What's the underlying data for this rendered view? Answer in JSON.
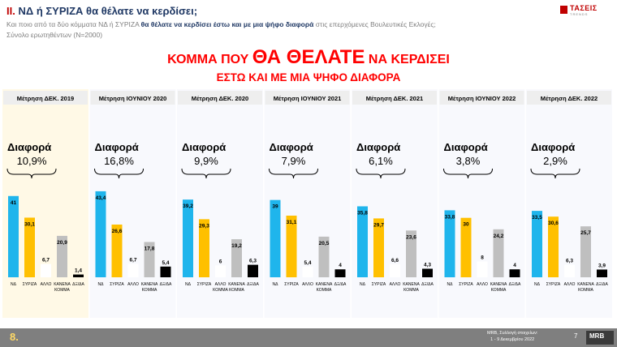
{
  "header": {
    "title_num": "II.",
    "title_rest": "ΝΔ  ή ΣΥΡΙΖΑ θα θέλατε να κερδίσει;",
    "subtitle_pre": "Και ποιο από τα δύο κόμματα ΝΔ ή ΣΥΡΙΖΑ ",
    "subtitle_bold": "θα θέλατε να κερδίσει έστω και με μια ψήφο διαφορά",
    "subtitle_post": " στις επερχόμενες Βουλευτικές Εκλογές;",
    "base": "Σύνολο ερωτηθέντων (Ν=2000)",
    "headline_pre": "ΚΟΜΜΑ ΠΟΥ ",
    "headline_big": "ΘΑ ΘΕΛΑΤΕ",
    "headline_post": " ΝΑ ΚΕΡΔΙΣΕΙ",
    "headline_line2": "ΕΣΤΩ ΚΑΙ ΜΕ ΜΙΑ ΨΗΦΟ ΔΙΑΦΟΡΑ"
  },
  "logo": {
    "name": "ΤΑΣΕΙΣ",
    "sub": "TRENDS"
  },
  "footer": {
    "page": "8.",
    "note_line1": "MRB, Συλλογή στοιχείων:",
    "note_line2": "1 - 9 Δεκεμβρίου 2022",
    "slide_num": "7",
    "brand": "MRB"
  },
  "colors": {
    "ND": "#1fb5ec",
    "SYRIZA": "#ffc000",
    "OTHER": "#ffffff",
    "NONE": "#bfbfbf",
    "DKDA": "#000000",
    "panel_tint": "#fff9e6",
    "panel_plain": "#f8f9fd"
  },
  "chart_data": {
    "type": "bar",
    "categories": [
      "ΝΔ",
      "ΣΥΡΙΖΑ",
      "ΑΛΛΟ",
      "ΚΑΝΕΝΑ ΚΟΜΜΑ",
      "ΔΞ/ΔΑ"
    ],
    "diff_label": "Διαφορά",
    "panels": [
      {
        "title": "Μέτρηση ΔΕΚ. 2019",
        "diff": "10,9%",
        "values": [
          41,
          30.1,
          6.7,
          20.9,
          1.4
        ],
        "labels": [
          "41",
          "30,1",
          "6,7",
          "20,9",
          "1,4"
        ],
        "cats": [
          "ΝΔ",
          "ΣΥΡΙΖΑ",
          "ΑΛΛΟ",
          "ΚΑΝΕΝΑ ΚΟΜΜΑ",
          "ΔΞ/ΔΑ"
        ]
      },
      {
        "title": "Μέτρηση ΙΟΥΝΙΟΥ 2020",
        "diff": "16,8%",
        "values": [
          43.4,
          26.6,
          6.7,
          17.8,
          5.4
        ],
        "labels": [
          "43,4",
          "26,6",
          "6,7",
          "17,8",
          "5,4"
        ],
        "cats": [
          "ΝΔ",
          "ΣΥΡΙΖΑ",
          "ΑΛΛΟ",
          "ΚΑΝΕΝΑ ΚΟΜΜΑ",
          "ΔΞ/ΔΑ"
        ]
      },
      {
        "title": "Μέτρηση ΔΕΚ. 2020",
        "diff": "9,9%",
        "values": [
          39.2,
          29.3,
          6,
          19.2,
          6.3
        ],
        "labels": [
          "39,2",
          "29,3",
          "6",
          "19,2",
          "6,3"
        ],
        "cats": [
          "ΝΔ",
          "ΣΥΡΙΖΑ",
          "ΑΛΛΟ ΚΟΜΜΑ",
          "ΚΑΝΕΝΑ ΚΟΜΜΑ",
          "ΔΞ/ΔΑ"
        ]
      },
      {
        "title": "Μέτρηση ΙΟΥΝΙΟΥ 2021",
        "diff": "7,9%",
        "values": [
          39,
          31.1,
          5.4,
          20.5,
          4
        ],
        "labels": [
          "39",
          "31,1",
          "5,4",
          "20,5",
          "4"
        ],
        "cats": [
          "ΝΔ",
          "ΣΥΡΙΖΑ",
          "ΑΛΛΟ",
          "ΚΑΝΕΝΑ ΚΟΜΜΑ",
          "ΔΞ/ΔΑ"
        ]
      },
      {
        "title": "Μέτρηση ΔΕΚ. 2021",
        "diff": "6,1%",
        "values": [
          35.8,
          29.7,
          6.6,
          23.6,
          4.3
        ],
        "labels": [
          "35,8",
          "29,7",
          "6,6",
          "23,6",
          "4,3"
        ],
        "cats": [
          "ΝΔ",
          "ΣΥΡΙΖΑ",
          "ΑΛΛΟ",
          "ΚΑΝΕΝΑ ΚΟΜΜΑ",
          "ΔΞ/ΔΑ"
        ]
      },
      {
        "title": "Μέτρηση ΙΟΥΝΙΟΥ 2022",
        "diff": "3,8%",
        "values": [
          33.8,
          30,
          8,
          24.2,
          4
        ],
        "labels": [
          "33,8",
          "30",
          "8",
          "24,2",
          "4"
        ],
        "cats": [
          "ΝΔ",
          "ΣΥΡΙΖΑ",
          "ΑΛΛΟ",
          "ΚΑΝΕΝΑ ΚΟΜΜΑ",
          "ΔΞ/ΔΑ"
        ]
      },
      {
        "title": "Μέτρηση ΔΕΚ. 2022",
        "diff": "2,9%",
        "values": [
          33.5,
          30.6,
          6.3,
          25.7,
          3.9
        ],
        "labels": [
          "33,5",
          "30,6",
          "6,3",
          "25,7",
          "3,9"
        ],
        "cats": [
          "ΝΔ",
          "ΣΥΡΙΖΑ",
          "ΑΛΛΟ",
          "ΚΑΝΕΝΑ ΚΟΜΜΑ",
          "ΔΞ/ΔΑ"
        ]
      }
    ],
    "ylim": [
      0,
      45
    ]
  }
}
